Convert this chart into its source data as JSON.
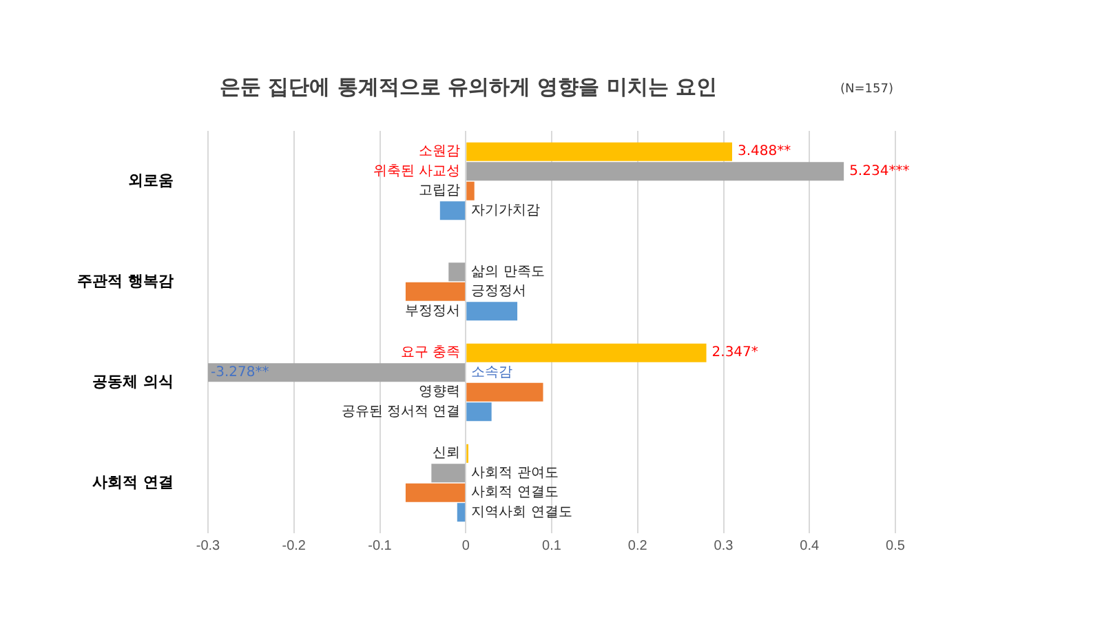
{
  "chart_data": {
    "type": "bar",
    "orientation": "horizontal",
    "title": "은둔 집단에 통계적으로 유의하게 영향을 미치는 요인",
    "categories": [
      "외로움",
      "주관적 행복감",
      "공동체 의식",
      "사회적 연결"
    ],
    "series": [
      {
        "color": "#ffc000",
        "values": [
          0.31,
          null,
          0.28,
          0.003
        ],
        "value_labels": [
          "소원감",
          null,
          "요구 충족",
          "신뢰"
        ]
      },
      {
        "color": "#a5a5a5",
        "values": [
          0.44,
          -0.02,
          -0.3,
          -0.04
        ],
        "value_labels": [
          "위축된 사교성",
          "삶의 만족도",
          "소속감",
          "사회적 관여도"
        ]
      },
      {
        "color": "#ed7d31",
        "values": [
          0.01,
          -0.07,
          0.09,
          -0.07
        ],
        "value_labels": [
          "고립감",
          "긍정정서",
          "영향력",
          "사회적 연결도"
        ]
      },
      {
        "color": "#5b9bd5",
        "values": [
          -0.03,
          0.06,
          0.03,
          -0.01
        ],
        "value_labels": [
          "자기가치감",
          "부정정서",
          "공유된 정서적 연결",
          "지역사회 연결도"
        ]
      }
    ],
    "xlim": [
      -0.3,
      0.5
    ],
    "xticks": [
      -0.3,
      -0.2,
      -0.1,
      0,
      0.1,
      0.2,
      0.3,
      0.4,
      0.5
    ],
    "grid": "x",
    "legend": false,
    "annotations": [
      "(N=157)",
      {
        "text": "3.488**",
        "x": 0.31,
        "y": "외로움"
      },
      {
        "text": "5.234***",
        "x": 0.44,
        "y": "외로움"
      },
      {
        "text": "2.347*",
        "x": 0.28
      },
      {
        "text": "-3.278**",
        "x": -0.3,
        "y": "공동체 의식"
      }
    ]
  }
}
